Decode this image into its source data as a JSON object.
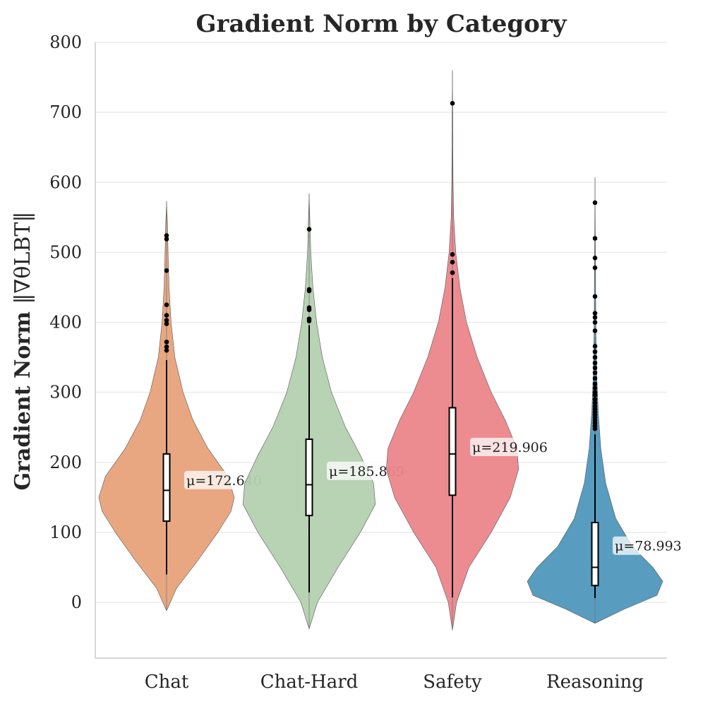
{
  "chart_data": {
    "type": "violin",
    "title": "Gradient Norm by Category",
    "ylabel_main": "Gradient Norm ",
    "ylabel_math": "‖∇θLBT‖",
    "xlabel": "",
    "ylim": [
      -80,
      800
    ],
    "yticks": [
      0,
      100,
      200,
      300,
      400,
      500,
      600,
      700,
      800
    ],
    "grid": true,
    "categories": [
      "Chat",
      "Chat-Hard",
      "Safety",
      "Reasoning"
    ],
    "colors": [
      "#E8A27A",
      "#B4D1B0",
      "#EB868B",
      "#4F97BD"
    ],
    "series": [
      {
        "name": "Chat",
        "mean": 172.64,
        "mean_label": "μ=172.640",
        "median": 160,
        "q1": 116,
        "q3": 212,
        "whisker_low": 40,
        "whisker_high": 346,
        "range": [
          -12,
          573
        ],
        "outliers": [
          360,
          365,
          372,
          398,
          403,
          410,
          425,
          474,
          519,
          524
        ],
        "density": [
          [
            -12,
            0.0
          ],
          [
            20,
            0.12
          ],
          [
            60,
            0.38
          ],
          [
            100,
            0.62
          ],
          [
            130,
            0.78
          ],
          [
            150,
            0.82
          ],
          [
            180,
            0.74
          ],
          [
            220,
            0.5
          ],
          [
            260,
            0.32
          ],
          [
            300,
            0.2
          ],
          [
            350,
            0.1
          ],
          [
            400,
            0.055
          ],
          [
            450,
            0.03
          ],
          [
            500,
            0.018
          ],
          [
            540,
            0.01
          ],
          [
            573,
            0.0
          ]
        ]
      },
      {
        "name": "Chat-Hard",
        "mean": 185.869,
        "mean_label": "μ=185.869",
        "median": 168,
        "q1": 124,
        "q3": 233,
        "whisker_low": 14,
        "whisker_high": 396,
        "range": [
          -38,
          584
        ],
        "outliers": [
          402,
          405,
          418,
          421,
          445,
          447,
          533
        ],
        "density": [
          [
            -38,
            0.0
          ],
          [
            0,
            0.1
          ],
          [
            50,
            0.35
          ],
          [
            100,
            0.62
          ],
          [
            140,
            0.8
          ],
          [
            170,
            0.78
          ],
          [
            210,
            0.62
          ],
          [
            250,
            0.44
          ],
          [
            300,
            0.27
          ],
          [
            350,
            0.16
          ],
          [
            400,
            0.09
          ],
          [
            450,
            0.045
          ],
          [
            500,
            0.02
          ],
          [
            550,
            0.008
          ],
          [
            584,
            0.0
          ]
        ]
      },
      {
        "name": "Safety",
        "mean": 219.906,
        "mean_label": "μ=219.906",
        "median": 212,
        "q1": 153,
        "q3": 278,
        "whisker_low": 7,
        "whisker_high": 463,
        "range": [
          -40,
          760
        ],
        "outliers": [
          471,
          486,
          497,
          713
        ],
        "density": [
          [
            -40,
            0.0
          ],
          [
            0,
            0.05
          ],
          [
            50,
            0.2
          ],
          [
            100,
            0.47
          ],
          [
            150,
            0.7
          ],
          [
            190,
            0.8
          ],
          [
            220,
            0.78
          ],
          [
            260,
            0.64
          ],
          [
            300,
            0.47
          ],
          [
            350,
            0.3
          ],
          [
            400,
            0.17
          ],
          [
            450,
            0.09
          ],
          [
            500,
            0.04
          ],
          [
            550,
            0.015
          ],
          [
            600,
            0.008
          ],
          [
            650,
            0.005
          ],
          [
            700,
            0.004
          ],
          [
            760,
            0.0
          ]
        ]
      },
      {
        "name": "Reasoning",
        "mean": 78.993,
        "mean_label": "μ=78.993",
        "median": 50,
        "q1": 24,
        "q3": 114,
        "whisker_low": 6,
        "whisker_high": 240,
        "range": [
          -30,
          607
        ],
        "outliers": [
          248,
          252,
          256,
          260,
          264,
          268,
          272,
          276,
          280,
          285,
          290,
          296,
          300,
          306,
          312,
          320,
          328,
          335,
          342,
          350,
          358,
          366,
          388,
          400,
          407,
          413,
          437,
          478,
          492,
          520,
          571
        ],
        "density": [
          [
            -30,
            0.0
          ],
          [
            -10,
            0.35
          ],
          [
            10,
            0.75
          ],
          [
            30,
            0.82
          ],
          [
            50,
            0.7
          ],
          [
            80,
            0.45
          ],
          [
            120,
            0.25
          ],
          [
            170,
            0.13
          ],
          [
            220,
            0.07
          ],
          [
            270,
            0.04
          ],
          [
            320,
            0.022
          ],
          [
            380,
            0.012
          ],
          [
            450,
            0.007
          ],
          [
            520,
            0.004
          ],
          [
            607,
            0.0
          ]
        ]
      }
    ]
  }
}
